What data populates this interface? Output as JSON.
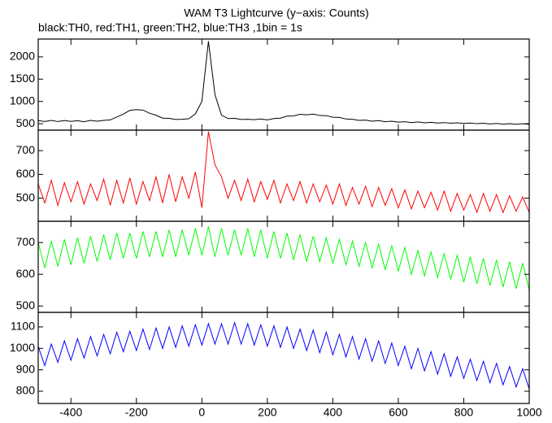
{
  "chart_data": [
    {
      "type": "line",
      "title": "WAM T3 Lightcurve (y−axis: Counts)",
      "subtitle": "black:TH0, red:TH1, green:TH2, blue:TH3 ,1bin = 1s",
      "color": "#000000",
      "x": [
        -500,
        -480,
        -460,
        -440,
        -420,
        -400,
        -380,
        -360,
        -340,
        -320,
        -300,
        -280,
        -260,
        -240,
        -220,
        -200,
        -180,
        -160,
        -140,
        -120,
        -100,
        -80,
        -60,
        -40,
        -20,
        0,
        20,
        40,
        60,
        80,
        100,
        120,
        140,
        160,
        180,
        200,
        220,
        240,
        260,
        280,
        300,
        320,
        340,
        360,
        380,
        400,
        420,
        440,
        460,
        480,
        500,
        520,
        540,
        560,
        580,
        600,
        620,
        640,
        660,
        680,
        700,
        720,
        740,
        760,
        780,
        800,
        820,
        840,
        860,
        880,
        900,
        920,
        940,
        960,
        980,
        1000
      ],
      "values": [
        570,
        550,
        575,
        548,
        572,
        552,
        568,
        545,
        575,
        555,
        575,
        585,
        650,
        715,
        800,
        815,
        805,
        735,
        690,
        625,
        620,
        595,
        600,
        610,
        720,
        1000,
        2350,
        1150,
        690,
        615,
        620,
        595,
        600,
        590,
        605,
        585,
        615,
        625,
        670,
        675,
        710,
        700,
        715,
        685,
        680,
        645,
        640,
        605,
        600,
        575,
        580,
        555,
        570,
        545,
        555,
        535,
        545,
        525,
        540,
        520,
        530,
        515,
        525,
        510,
        520,
        505,
        515,
        500,
        510,
        495,
        505,
        490,
        500,
        488,
        498,
        485
      ],
      "xlim": [
        -500,
        1000
      ],
      "xticks": [
        -400,
        -200,
        0,
        200,
        400,
        600,
        800,
        1000
      ],
      "ylim": [
        355,
        2400
      ],
      "yticks": [
        500,
        1000,
        1500,
        2000
      ]
    },
    {
      "type": "line",
      "color": "#ff0000",
      "x": [
        -500,
        -480,
        -460,
        -440,
        -420,
        -400,
        -380,
        -360,
        -340,
        -320,
        -300,
        -280,
        -260,
        -240,
        -220,
        -200,
        -180,
        -160,
        -140,
        -120,
        -100,
        -80,
        -60,
        -40,
        -20,
        0,
        20,
        40,
        60,
        80,
        100,
        120,
        140,
        160,
        180,
        200,
        220,
        240,
        260,
        280,
        300,
        320,
        340,
        360,
        380,
        400,
        420,
        440,
        460,
        480,
        500,
        520,
        540,
        560,
        580,
        600,
        620,
        640,
        660,
        680,
        700,
        720,
        740,
        760,
        780,
        800,
        820,
        840,
        860,
        880,
        900,
        920,
        940,
        960,
        980,
        1000
      ],
      "values": [
        560,
        480,
        575,
        470,
        565,
        485,
        570,
        475,
        560,
        490,
        580,
        470,
        575,
        480,
        585,
        475,
        570,
        490,
        590,
        480,
        600,
        485,
        590,
        500,
        610,
        460,
        780,
        640,
        590,
        500,
        575,
        490,
        580,
        485,
        570,
        495,
        575,
        480,
        560,
        490,
        570,
        480,
        560,
        485,
        555,
        475,
        560,
        470,
        545,
        475,
        550,
        465,
        545,
        470,
        540,
        460,
        535,
        455,
        530,
        460,
        525,
        450,
        530,
        445,
        520,
        450,
        515,
        440,
        520,
        445,
        515,
        440,
        510,
        445,
        505,
        440
      ],
      "xlim": [
        -500,
        1000
      ],
      "xticks": [
        -400,
        -200,
        0,
        200,
        400,
        600,
        800,
        1000
      ],
      "ylim": [
        403,
        786
      ],
      "yticks": [
        500,
        600,
        700
      ]
    },
    {
      "type": "line",
      "color": "#00ff00",
      "x": [
        -500,
        -480,
        -460,
        -440,
        -420,
        -400,
        -380,
        -360,
        -340,
        -320,
        -300,
        -280,
        -260,
        -240,
        -220,
        -200,
        -180,
        -160,
        -140,
        -120,
        -100,
        -80,
        -60,
        -40,
        -20,
        0,
        20,
        40,
        60,
        80,
        100,
        120,
        140,
        160,
        180,
        200,
        220,
        240,
        260,
        280,
        300,
        320,
        340,
        360,
        380,
        400,
        420,
        440,
        460,
        480,
        500,
        520,
        540,
        560,
        580,
        600,
        620,
        640,
        660,
        680,
        700,
        720,
        740,
        760,
        780,
        800,
        820,
        840,
        860,
        880,
        900,
        920,
        940,
        960,
        980,
        1000
      ],
      "values": [
        700,
        620,
        705,
        625,
        710,
        630,
        715,
        635,
        720,
        640,
        725,
        645,
        730,
        650,
        730,
        650,
        735,
        655,
        735,
        655,
        740,
        655,
        740,
        660,
        745,
        660,
        750,
        655,
        745,
        660,
        740,
        660,
        745,
        655,
        740,
        650,
        735,
        650,
        730,
        645,
        725,
        640,
        720,
        640,
        715,
        635,
        710,
        630,
        705,
        625,
        700,
        620,
        695,
        615,
        690,
        610,
        685,
        600,
        675,
        595,
        670,
        590,
        665,
        585,
        660,
        575,
        655,
        570,
        650,
        565,
        645,
        560,
        640,
        555,
        635,
        550
      ],
      "xlim": [
        -500,
        1000
      ],
      "xticks": [
        -400,
        -200,
        0,
        200,
        400,
        600,
        800,
        1000
      ],
      "ylim": [
        480,
        767
      ],
      "yticks": [
        500,
        600,
        700
      ]
    },
    {
      "type": "line",
      "color": "#0000ff",
      "x": [
        -500,
        -480,
        -460,
        -440,
        -420,
        -400,
        -380,
        -360,
        -340,
        -320,
        -300,
        -280,
        -260,
        -240,
        -220,
        -200,
        -180,
        -160,
        -140,
        -120,
        -100,
        -80,
        -60,
        -40,
        -20,
        0,
        20,
        40,
        60,
        80,
        100,
        120,
        140,
        160,
        180,
        200,
        220,
        240,
        260,
        280,
        300,
        320,
        340,
        360,
        380,
        400,
        420,
        440,
        460,
        480,
        500,
        520,
        540,
        560,
        580,
        600,
        620,
        640,
        660,
        680,
        700,
        720,
        740,
        760,
        780,
        800,
        820,
        840,
        860,
        880,
        900,
        920,
        940,
        960,
        980,
        1000
      ],
      "values": [
        1010,
        920,
        1020,
        935,
        1035,
        945,
        1045,
        955,
        1055,
        965,
        1065,
        975,
        1075,
        985,
        1080,
        990,
        1090,
        995,
        1095,
        1000,
        1100,
        1005,
        1105,
        1010,
        1110,
        1015,
        1115,
        1020,
        1115,
        1020,
        1120,
        1020,
        1115,
        1015,
        1110,
        1010,
        1105,
        1005,
        1100,
        1000,
        1090,
        990,
        1085,
        980,
        1075,
        970,
        1065,
        960,
        1055,
        950,
        1045,
        940,
        1035,
        930,
        1025,
        920,
        1010,
        905,
        1000,
        895,
        985,
        880,
        975,
        870,
        960,
        860,
        950,
        850,
        940,
        840,
        930,
        830,
        915,
        820,
        905,
        810
      ],
      "xlim": [
        -500,
        1000
      ],
      "xticks": [
        -400,
        -200,
        0,
        200,
        400,
        600,
        800,
        1000
      ],
      "ylim": [
        743,
        1168
      ],
      "yticks": [
        800,
        900,
        1000,
        1100
      ]
    }
  ]
}
